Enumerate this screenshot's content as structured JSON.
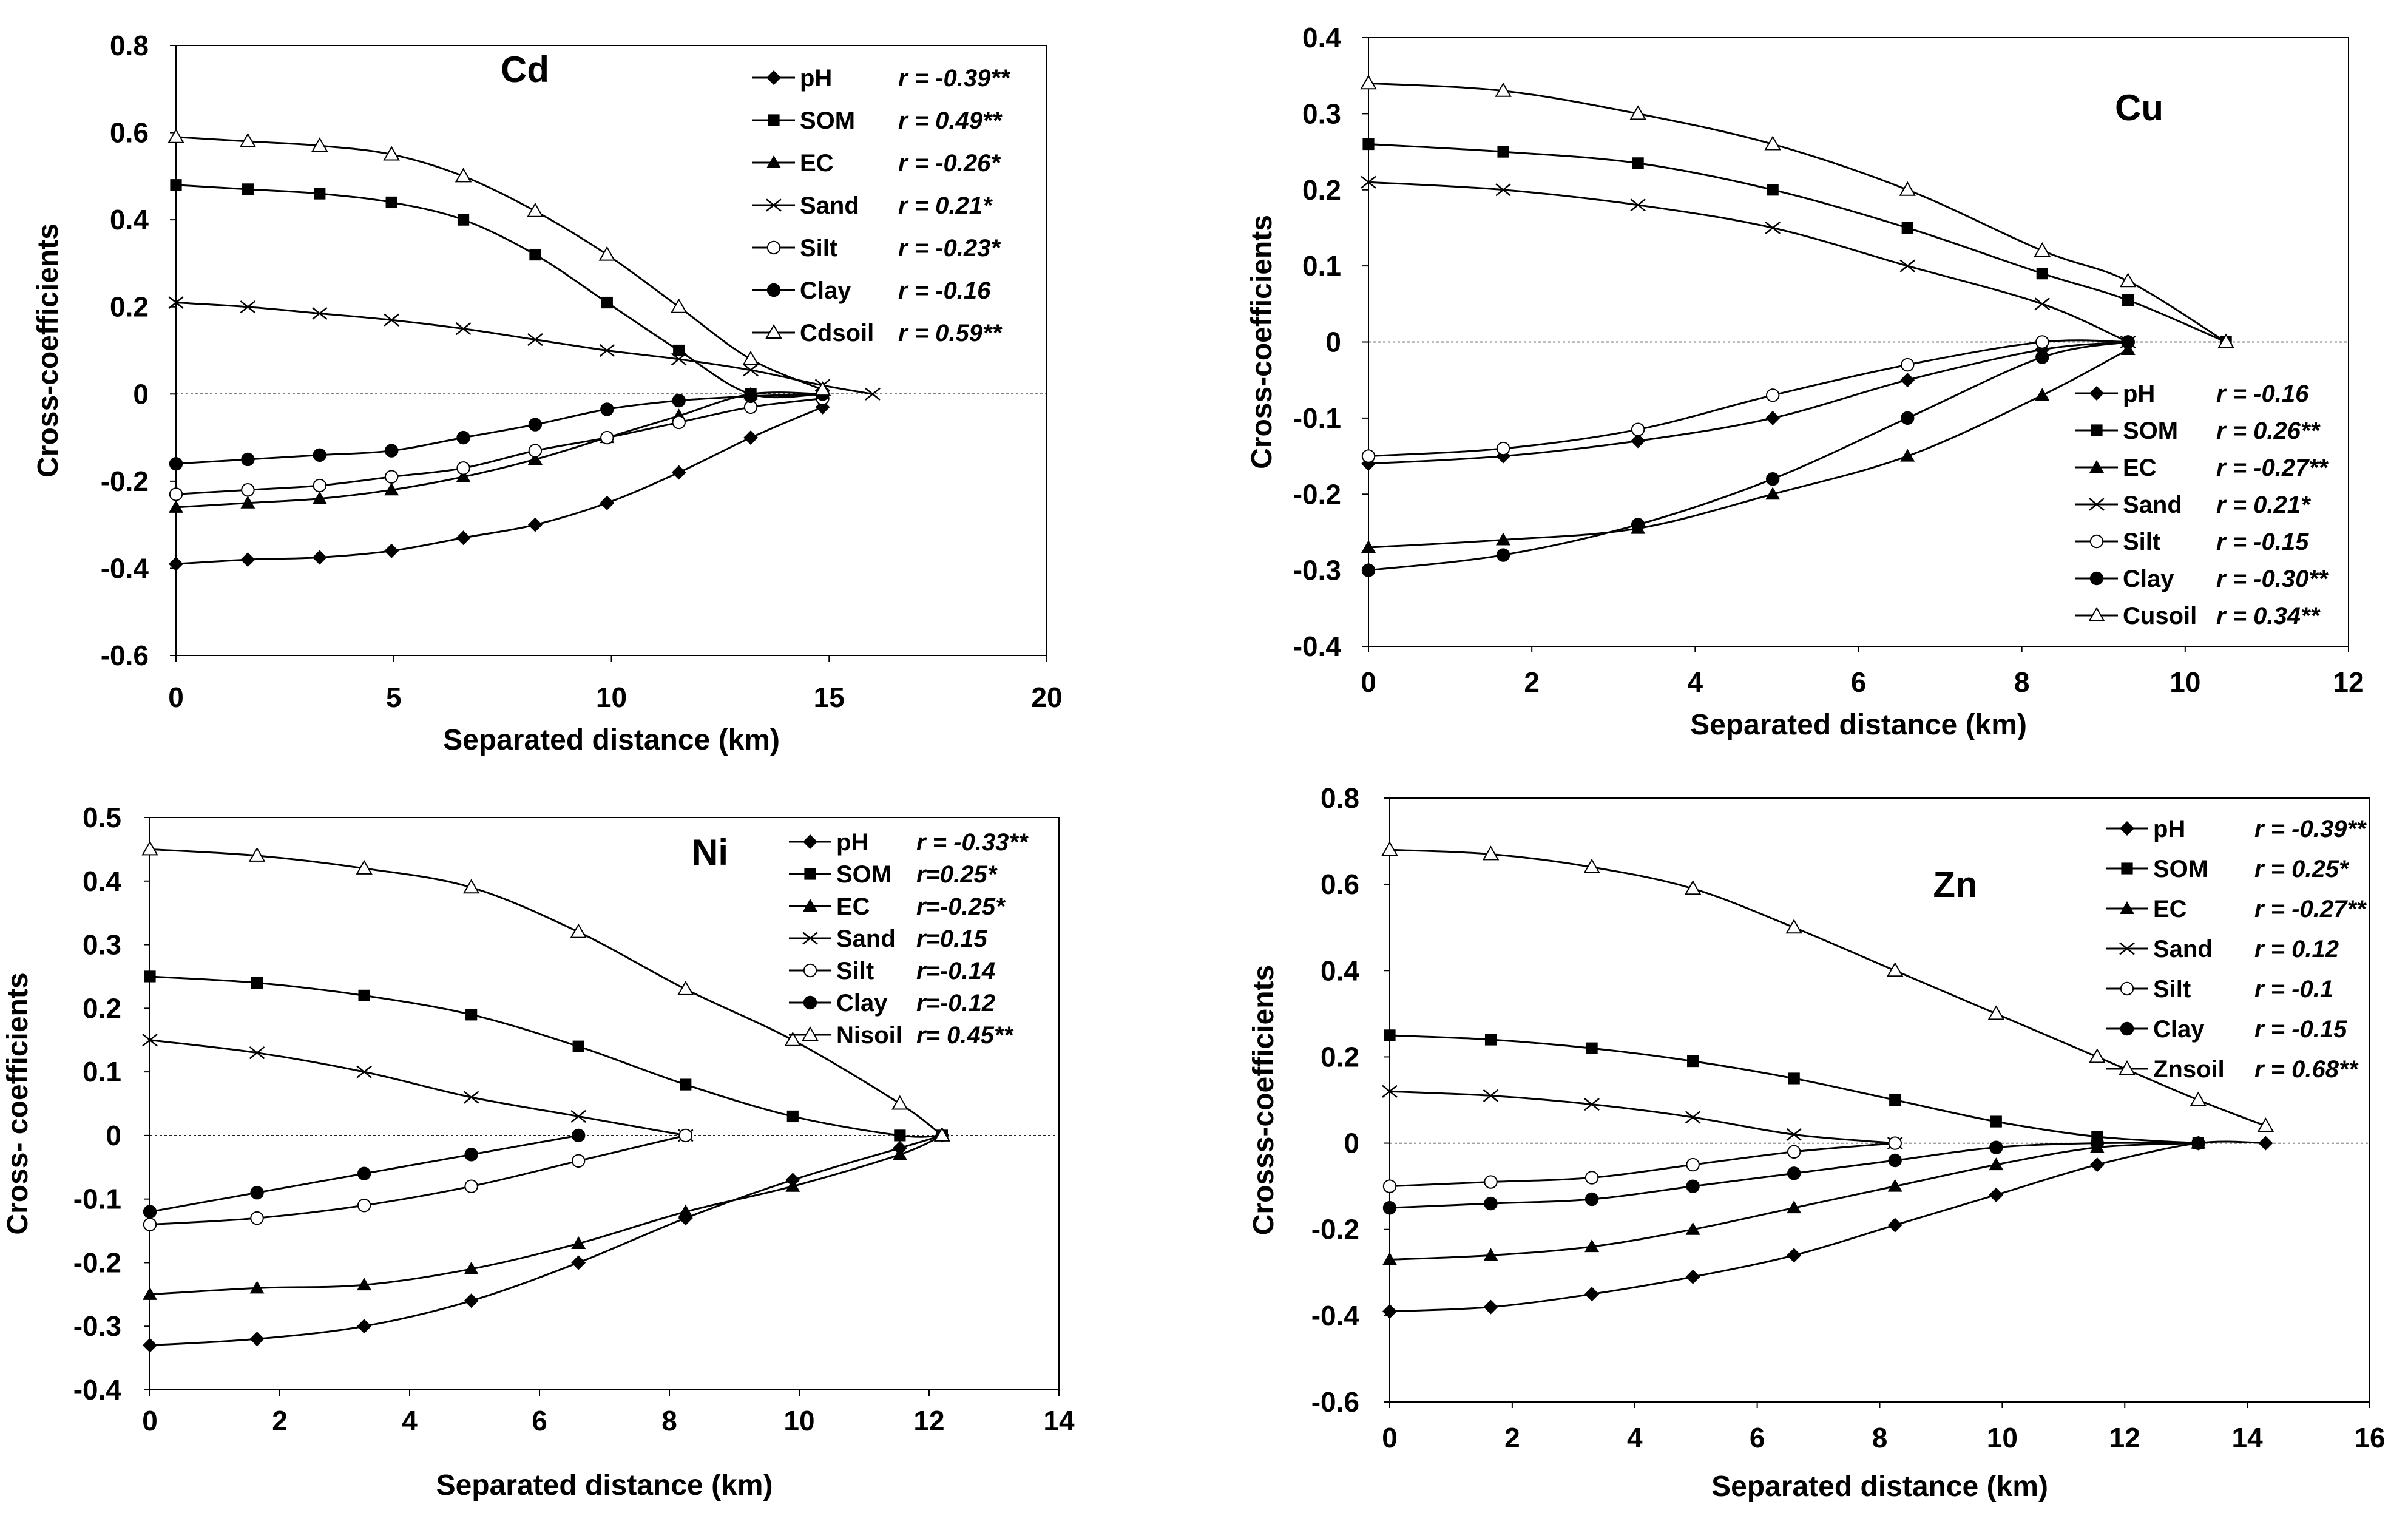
{
  "chart_data": [
    {
      "type": "line",
      "title": "Cd",
      "xlabel": "Separated distance (km)",
      "ylabel": "Cross-coefficients",
      "xlim": [
        0,
        20
      ],
      "ylim": [
        -0.6,
        0.8
      ],
      "xticks": [
        "0",
        "5",
        "10",
        "15",
        "20"
      ],
      "yticks": [
        "-0.6",
        "-0.4",
        "-0.2",
        "0",
        "0.2",
        "0.4",
        "0.6",
        "0.8"
      ],
      "legend_position": "top-right",
      "grid": false,
      "series": [
        {
          "name": "pH",
          "marker": "diamond",
          "r": "r = -0.39**",
          "x": [
            0,
            1.65,
            3.3,
            4.95,
            6.6,
            8.25,
            9.9,
            11.55,
            13.2,
            14.85
          ],
          "y": [
            -0.39,
            -0.38,
            -0.375,
            -0.36,
            -0.33,
            -0.3,
            -0.25,
            -0.18,
            -0.1,
            -0.03
          ]
        },
        {
          "name": "SOM",
          "marker": "square",
          "r": "r = 0.49**",
          "x": [
            0,
            1.65,
            3.3,
            4.95,
            6.6,
            8.25,
            9.9,
            11.55,
            13.2,
            14.85
          ],
          "y": [
            0.48,
            0.47,
            0.46,
            0.44,
            0.4,
            0.32,
            0.21,
            0.1,
            0.0,
            0.0
          ]
        },
        {
          "name": "EC",
          "marker": "triangle",
          "r": "r = -0.26*",
          "x": [
            0,
            1.65,
            3.3,
            4.95,
            6.6,
            8.25,
            9.9,
            11.55,
            13.2,
            14.85
          ],
          "y": [
            -0.26,
            -0.25,
            -0.24,
            -0.22,
            -0.19,
            -0.15,
            -0.1,
            -0.05,
            0.0,
            0.0
          ]
        },
        {
          "name": "Sand",
          "marker": "x",
          "r": "r = 0.21*",
          "x": [
            0,
            1.65,
            3.3,
            4.95,
            6.6,
            8.25,
            9.9,
            11.55,
            13.2,
            14.85,
            16.0
          ],
          "y": [
            0.21,
            0.2,
            0.185,
            0.17,
            0.15,
            0.125,
            0.1,
            0.08,
            0.055,
            0.02,
            0.0
          ]
        },
        {
          "name": "Silt",
          "marker": "circle-open",
          "r": "r = -0.23*",
          "x": [
            0,
            1.65,
            3.3,
            4.95,
            6.6,
            8.25,
            9.9,
            11.55,
            13.2,
            14.85
          ],
          "y": [
            -0.23,
            -0.22,
            -0.21,
            -0.19,
            -0.17,
            -0.13,
            -0.1,
            -0.065,
            -0.03,
            -0.01
          ]
        },
        {
          "name": "Clay",
          "marker": "circle",
          "r": "r = -0.16",
          "x": [
            0,
            1.65,
            3.3,
            4.95,
            6.6,
            8.25,
            9.9,
            11.55,
            13.2,
            14.85
          ],
          "y": [
            -0.16,
            -0.15,
            -0.14,
            -0.13,
            -0.1,
            -0.07,
            -0.035,
            -0.015,
            -0.005,
            0.0
          ]
        },
        {
          "name": "Cdsoil",
          "marker": "triangle-open",
          "r": "r = 0.59**",
          "x": [
            0,
            1.65,
            3.3,
            4.95,
            6.6,
            8.25,
            9.9,
            11.55,
            13.2,
            14.85
          ],
          "y": [
            0.59,
            0.58,
            0.57,
            0.55,
            0.5,
            0.42,
            0.32,
            0.2,
            0.08,
            0.01
          ]
        }
      ]
    },
    {
      "type": "line",
      "title": "Cu",
      "xlabel": "Separated distance (km)",
      "ylabel": "Cross-coefficients",
      "xlim": [
        0,
        12
      ],
      "ylim": [
        -0.4,
        0.4
      ],
      "xticks": [
        "0",
        "2",
        "4",
        "6",
        "8",
        "10",
        "12"
      ],
      "yticks": [
        "-0.4",
        "-0.3",
        "-0.2",
        "-0.1",
        "0",
        "0.1",
        "0.2",
        "0.3",
        "0.4"
      ],
      "legend_position": "bottom-right",
      "grid": false,
      "series": [
        {
          "name": "pH",
          "marker": "diamond",
          "r": "r = -0.16",
          "x": [
            0,
            1.65,
            3.3,
            4.95,
            6.6,
            8.25,
            9.3
          ],
          "y": [
            -0.16,
            -0.15,
            -0.13,
            -0.1,
            -0.05,
            -0.01,
            0.0
          ]
        },
        {
          "name": "SOM",
          "marker": "square",
          "r": "r = 0.26**",
          "x": [
            0,
            1.65,
            3.3,
            4.95,
            6.6,
            8.25,
            9.3,
            10.5
          ],
          "y": [
            0.26,
            0.25,
            0.235,
            0.2,
            0.15,
            0.09,
            0.055,
            0.0
          ]
        },
        {
          "name": "EC",
          "marker": "triangle",
          "r": "r = -0.27**",
          "x": [
            0,
            1.65,
            3.3,
            4.95,
            6.6,
            8.25,
            9.3
          ],
          "y": [
            -0.27,
            -0.26,
            -0.245,
            -0.2,
            -0.15,
            -0.07,
            -0.01
          ]
        },
        {
          "name": "Sand",
          "marker": "x",
          "r": "r = 0.21*",
          "x": [
            0,
            1.65,
            3.3,
            4.95,
            6.6,
            8.25,
            9.3
          ],
          "y": [
            0.21,
            0.2,
            0.18,
            0.15,
            0.1,
            0.05,
            0.0
          ]
        },
        {
          "name": "Silt",
          "marker": "circle-open",
          "r": "r = -0.15",
          "x": [
            0,
            1.65,
            3.3,
            4.95,
            6.6,
            8.25,
            9.3
          ],
          "y": [
            -0.15,
            -0.14,
            -0.115,
            -0.07,
            -0.03,
            0.0,
            0.0
          ]
        },
        {
          "name": "Clay",
          "marker": "circle",
          "r": "r = -0.30**",
          "x": [
            0,
            1.65,
            3.3,
            4.95,
            6.6,
            8.25,
            9.3
          ],
          "y": [
            -0.3,
            -0.28,
            -0.24,
            -0.18,
            -0.1,
            -0.02,
            0.0
          ]
        },
        {
          "name": "Cusoil",
          "marker": "triangle-open",
          "r": "r = 0.34**",
          "x": [
            0,
            1.65,
            3.3,
            4.95,
            6.6,
            8.25,
            9.3,
            10.5
          ],
          "y": [
            0.34,
            0.33,
            0.3,
            0.26,
            0.2,
            0.12,
            0.08,
            0.0
          ]
        }
      ]
    },
    {
      "type": "line",
      "title": "Ni",
      "xlabel": "Separated distance (km)",
      "ylabel": "Cross- coefficients",
      "xlim": [
        0,
        14
      ],
      "ylim": [
        -0.4,
        0.5
      ],
      "xticks": [
        "0",
        "2",
        "4",
        "6",
        "8",
        "10",
        "12",
        "14"
      ],
      "yticks": [
        "-0.4",
        "-0.3",
        "-0.2",
        "-0.1",
        "0",
        "0.1",
        "0.2",
        "0.3",
        "0.4",
        "0.5"
      ],
      "legend_position": "top-right",
      "grid": false,
      "series": [
        {
          "name": "pH",
          "marker": "diamond",
          "r": "r = -0.33**",
          "x": [
            0,
            1.65,
            3.3,
            4.95,
            6.6,
            8.25,
            9.9,
            11.55,
            12.2
          ],
          "y": [
            -0.33,
            -0.32,
            -0.3,
            -0.26,
            -0.2,
            -0.13,
            -0.07,
            -0.02,
            0.0
          ]
        },
        {
          "name": "SOM",
          "marker": "square",
          "r": "r=0.25*",
          "x": [
            0,
            1.65,
            3.3,
            4.95,
            6.6,
            8.25,
            9.9,
            11.55,
            12.2
          ],
          "y": [
            0.25,
            0.24,
            0.22,
            0.19,
            0.14,
            0.08,
            0.03,
            0.0,
            0.0
          ]
        },
        {
          "name": "EC",
          "marker": "triangle",
          "r": "r=-0.25*",
          "x": [
            0,
            1.65,
            3.3,
            4.95,
            6.6,
            8.25,
            9.9,
            11.55,
            12.2
          ],
          "y": [
            -0.25,
            -0.24,
            -0.235,
            -0.21,
            -0.17,
            -0.12,
            -0.08,
            -0.03,
            0.0
          ]
        },
        {
          "name": "Sand",
          "marker": "x",
          "r": "r=0.15",
          "x": [
            0,
            1.65,
            3.3,
            4.95,
            6.6,
            8.25
          ],
          "y": [
            0.15,
            0.13,
            0.1,
            0.06,
            0.03,
            0.0
          ]
        },
        {
          "name": "Silt",
          "marker": "circle-open",
          "r": "r=-0.14",
          "x": [
            0,
            1.65,
            3.3,
            4.95,
            6.6,
            8.25
          ],
          "y": [
            -0.14,
            -0.13,
            -0.11,
            -0.08,
            -0.04,
            0.0
          ]
        },
        {
          "name": "Clay",
          "marker": "circle",
          "r": "r=-0.12",
          "x": [
            0,
            1.65,
            3.3,
            4.95,
            6.6
          ],
          "y": [
            -0.12,
            -0.09,
            -0.06,
            -0.03,
            0.0
          ]
        },
        {
          "name": "Nisoil",
          "marker": "triangle-open",
          "r": "r= 0.45**",
          "x": [
            0,
            1.65,
            3.3,
            4.95,
            6.6,
            8.25,
            9.9,
            11.55,
            12.2
          ],
          "y": [
            0.45,
            0.44,
            0.42,
            0.39,
            0.32,
            0.23,
            0.15,
            0.05,
            0.0
          ]
        }
      ]
    },
    {
      "type": "line",
      "title": "Zn",
      "xlabel": "Separated distance (km)",
      "ylabel": "Crosss-coefficients",
      "xlim": [
        0,
        16
      ],
      "ylim": [
        -0.6,
        0.8
      ],
      "xticks": [
        "0",
        "2",
        "4",
        "6",
        "8",
        "10",
        "12",
        "14",
        "16"
      ],
      "yticks": [
        "-0.6",
        "-0.4",
        "-0.2",
        "0",
        "0.2",
        "0.4",
        "0.6",
        "0.8"
      ],
      "legend_position": "top-right",
      "grid": false,
      "series": [
        {
          "name": "pH",
          "marker": "diamond",
          "r": "r = -0.39**",
          "x": [
            0,
            1.65,
            3.3,
            4.95,
            6.6,
            8.25,
            9.9,
            11.55,
            13.2,
            14.3
          ],
          "y": [
            -0.39,
            -0.38,
            -0.35,
            -0.31,
            -0.26,
            -0.19,
            -0.12,
            -0.05,
            0.0,
            0.0
          ]
        },
        {
          "name": "SOM",
          "marker": "square",
          "r": "r = 0.25*",
          "x": [
            0,
            1.65,
            3.3,
            4.95,
            6.6,
            8.25,
            9.9,
            11.55,
            13.2
          ],
          "y": [
            0.25,
            0.24,
            0.22,
            0.19,
            0.15,
            0.1,
            0.05,
            0.015,
            0.0
          ]
        },
        {
          "name": "EC",
          "marker": "triangle",
          "r": "r = -0.27**",
          "x": [
            0,
            1.65,
            3.3,
            4.95,
            6.6,
            8.25,
            9.9,
            11.55,
            13.2
          ],
          "y": [
            -0.27,
            -0.26,
            -0.24,
            -0.2,
            -0.15,
            -0.1,
            -0.05,
            -0.01,
            0.0
          ]
        },
        {
          "name": "Sand",
          "marker": "x",
          "r": "r = 0.12",
          "x": [
            0,
            1.65,
            3.3,
            4.95,
            6.6,
            8.25
          ],
          "y": [
            0.12,
            0.11,
            0.09,
            0.06,
            0.02,
            0.0
          ]
        },
        {
          "name": "Silt",
          "marker": "circle-open",
          "r": "r = -0.1",
          "x": [
            0,
            1.65,
            3.3,
            4.95,
            6.6,
            8.25
          ],
          "y": [
            -0.1,
            -0.09,
            -0.08,
            -0.05,
            -0.02,
            0.0
          ]
        },
        {
          "name": "Clay",
          "marker": "circle",
          "r": "r = -0.15",
          "x": [
            0,
            1.65,
            3.3,
            4.95,
            6.6,
            8.25,
            9.9,
            11.55,
            13.2
          ],
          "y": [
            -0.15,
            -0.14,
            -0.13,
            -0.1,
            -0.07,
            -0.04,
            -0.01,
            0.0,
            0.0
          ]
        },
        {
          "name": "Znsoil",
          "marker": "triangle-open",
          "r": "r = 0.68**",
          "x": [
            0,
            1.65,
            3.3,
            4.95,
            6.6,
            8.25,
            9.9,
            11.55,
            13.2,
            14.3
          ],
          "y": [
            0.68,
            0.67,
            0.64,
            0.59,
            0.5,
            0.4,
            0.3,
            0.2,
            0.1,
            0.04
          ]
        }
      ]
    }
  ]
}
